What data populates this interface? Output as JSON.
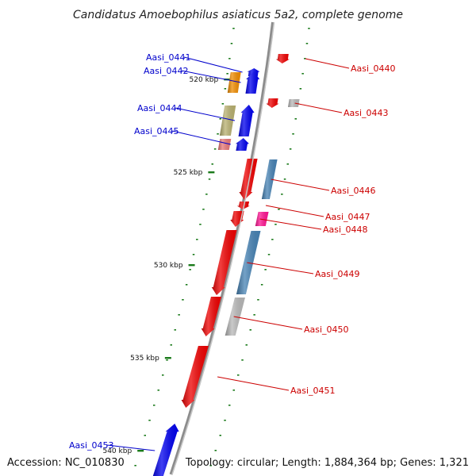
{
  "title": "Candidatus Amoebophilus asiaticus 5a2, complete genome",
  "footer": {
    "accession": "Accession: NC_010830",
    "summary": "Topology: circular; Length: 1,884,364 bp; Genes: 1,321"
  },
  "scale": {
    "ticks": [
      {
        "label": "520 kbp",
        "kbp": 520
      },
      {
        "label": "525 kbp",
        "kbp": 525
      },
      {
        "label": "530 kbp",
        "kbp": 530
      },
      {
        "label": "535 kbp",
        "kbp": 535
      },
      {
        "label": "540 kbp",
        "kbp": 540
      }
    ]
  },
  "colors": {
    "backbone": "#8c8c8c",
    "forward_label": "#0000cc",
    "reverse_label": "#cc0000",
    "tick": "#1a7a1a",
    "cds_forward": "#0000ee",
    "cds_reverse": "#ee0000",
    "cog_orange": "#f08c00",
    "cog_khaki": "#b8b070",
    "cog_salmon": "#e87878",
    "cog_steelblue": "#4682b4",
    "cog_grey": "#b8b8b8",
    "cog_pink": "#ff1493"
  },
  "genes": [
    {
      "label": "Aasi_0440",
      "strand": "-",
      "cog": "none"
    },
    {
      "label": "Aasi_0441",
      "strand": "+",
      "cog": "none"
    },
    {
      "label": "Aasi_0442",
      "strand": "+",
      "cog": "cog_orange"
    },
    {
      "label": "Aasi_0443",
      "strand": "-",
      "cog": "cog_grey"
    },
    {
      "label": "Aasi_0444",
      "strand": "+",
      "cog": "cog_khaki"
    },
    {
      "label": "Aasi_0445",
      "strand": "+",
      "cog": "cog_salmon"
    },
    {
      "label": "Aasi_0446",
      "strand": "-",
      "cog": "cog_steelblue"
    },
    {
      "label": "Aasi_0447",
      "strand": "-",
      "cog": "none"
    },
    {
      "label": "Aasi_0448",
      "strand": "-",
      "cog": "cog_pink"
    },
    {
      "label": "Aasi_0449",
      "strand": "-",
      "cog": "cog_steelblue"
    },
    {
      "label": "Aasi_0450",
      "strand": "-",
      "cog": "cog_grey"
    },
    {
      "label": "Aasi_0451",
      "strand": "-",
      "cog": "none"
    },
    {
      "label": "Aasi_0453",
      "strand": "+",
      "cog": "none"
    }
  ]
}
